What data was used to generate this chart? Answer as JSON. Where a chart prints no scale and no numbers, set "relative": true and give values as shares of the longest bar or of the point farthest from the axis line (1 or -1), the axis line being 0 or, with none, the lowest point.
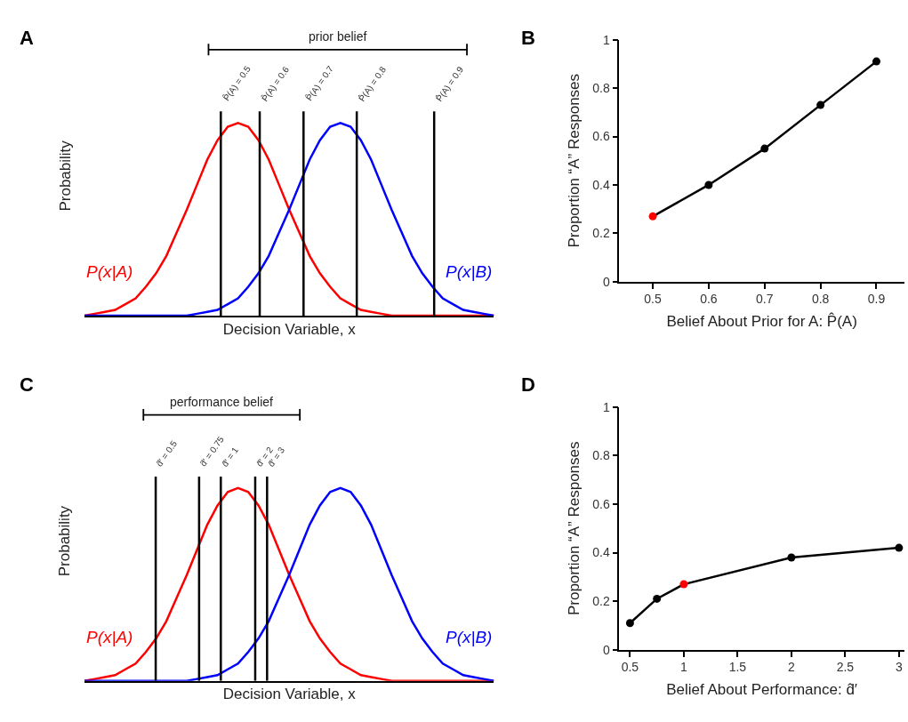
{
  "chart_data": [
    {
      "type": "line",
      "title": "A",
      "xlabel": "Decision Variable, x",
      "ylabel": "Probability",
      "relative": true,
      "tick_labels": false,
      "legend": false,
      "marker": "none",
      "categories": [
        null,
        null,
        null,
        null,
        null,
        null,
        null,
        null,
        null,
        null,
        null,
        null,
        null,
        null,
        null,
        null,
        null,
        null,
        null,
        null,
        null,
        null,
        null,
        null,
        null,
        null,
        null,
        null,
        null,
        null,
        null,
        null,
        null,
        null,
        null,
        null,
        null,
        null,
        null,
        null,
        null
      ],
      "series": [
        {
          "name": "P(x|A)",
          "color": "#ff0000",
          "values": [
            0,
            0.01,
            0.02,
            0.03,
            0.06,
            0.09,
            0.15,
            0.22,
            0.31,
            0.43,
            0.55,
            0.68,
            0.81,
            0.91,
            0.98,
            1,
            0.98,
            0.91,
            0.81,
            0.68,
            0.55,
            0.43,
            0.31,
            0.22,
            0.15,
            0.09,
            0.06,
            0.03,
            0.02,
            0.01,
            0,
            0,
            0,
            0,
            0,
            0,
            0,
            0,
            0,
            0,
            0
          ]
        },
        {
          "name": "P(x|B)",
          "color": "#0000ff",
          "values": [
            0,
            0,
            0,
            0,
            0,
            0,
            0,
            0,
            0,
            0,
            0,
            0.01,
            0.02,
            0.03,
            0.06,
            0.09,
            0.15,
            0.22,
            0.31,
            0.43,
            0.55,
            0.68,
            0.81,
            0.91,
            0.98,
            1,
            0.98,
            0.91,
            0.81,
            0.68,
            0.55,
            0.43,
            0.31,
            0.22,
            0.15,
            0.09,
            0.06,
            0.03,
            0.02,
            0.01,
            0
          ]
        }
      ],
      "annotations": [
        "prior belief",
        "P̂(A) = 0.5",
        "P̂(A) = 0.6",
        "P̂(A) = 0.7",
        "P̂(A) = 0.8",
        "P̂(A) = 0.9"
      ]
    },
    {
      "type": "line",
      "title": "B",
      "xlabel": "Belief About Prior for A: P̂(A)",
      "ylabel": "Proportion “A” Responses",
      "legend": false,
      "marker": "circle",
      "xlim": [
        0.44,
        0.95
      ],
      "xticks": [
        0.5,
        0.6,
        0.7,
        0.8,
        0.9
      ],
      "ylim": [
        0,
        1
      ],
      "yticks": [
        0,
        0.2,
        0.4,
        0.6,
        0.8,
        1
      ],
      "x": [
        0.5,
        0.6,
        0.7,
        0.8,
        0.9
      ],
      "series": [
        {
          "color": "#000000",
          "colors": [
            "#ff0000",
            "#000000",
            "#000000",
            "#000000",
            "#000000"
          ],
          "values": [
            0.27,
            0.4,
            0.55,
            0.73,
            0.91
          ]
        }
      ]
    },
    {
      "type": "line",
      "title": "C",
      "xlabel": "Decision Variable, x",
      "ylabel": "Probability",
      "relative": true,
      "tick_labels": false,
      "legend": false,
      "marker": "none",
      "categories": [
        null,
        null,
        null,
        null,
        null,
        null,
        null,
        null,
        null,
        null,
        null,
        null,
        null,
        null,
        null,
        null,
        null,
        null,
        null,
        null,
        null,
        null,
        null,
        null,
        null,
        null,
        null,
        null,
        null,
        null,
        null,
        null,
        null,
        null,
        null,
        null,
        null,
        null,
        null,
        null,
        null
      ],
      "series": [
        {
          "name": "P(x|A)",
          "color": "#ff0000",
          "values": [
            0,
            0.01,
            0.02,
            0.03,
            0.06,
            0.09,
            0.15,
            0.22,
            0.31,
            0.43,
            0.55,
            0.68,
            0.81,
            0.91,
            0.98,
            1,
            0.98,
            0.91,
            0.81,
            0.68,
            0.55,
            0.43,
            0.31,
            0.22,
            0.15,
            0.09,
            0.06,
            0.03,
            0.02,
            0.01,
            0,
            0,
            0,
            0,
            0,
            0,
            0,
            0,
            0,
            0,
            0
          ]
        },
        {
          "name": "P(x|B)",
          "color": "#0000ff",
          "values": [
            0,
            0,
            0,
            0,
            0,
            0,
            0,
            0,
            0,
            0,
            0,
            0.01,
            0.02,
            0.03,
            0.06,
            0.09,
            0.15,
            0.22,
            0.31,
            0.43,
            0.55,
            0.68,
            0.81,
            0.91,
            0.98,
            1,
            0.98,
            0.91,
            0.81,
            0.68,
            0.55,
            0.43,
            0.31,
            0.22,
            0.15,
            0.09,
            0.06,
            0.03,
            0.02,
            0.01,
            0
          ]
        }
      ],
      "annotations": [
        "performance belief",
        "d̂′ = 0.5",
        "d̂′ = 0.75",
        "d̂′ = 1",
        "d̂′ = 2",
        "d̂′ = 3"
      ]
    },
    {
      "type": "line",
      "title": "D",
      "xlabel": "Belief About Performance: d̂′",
      "ylabel": "Proportion “A” Responses",
      "legend": false,
      "marker": "circle",
      "xlim": [
        0.4,
        3.05
      ],
      "xticks": [
        0.5,
        1,
        1.5,
        2,
        2.5,
        3
      ],
      "ylim": [
        0,
        1
      ],
      "yticks": [
        0,
        0.2,
        0.4,
        0.6,
        0.8,
        1
      ],
      "x": [
        0.5,
        0.75,
        1,
        2,
        3
      ],
      "series": [
        {
          "color": "#000000",
          "colors": [
            "#000000",
            "#000000",
            "#ff0000",
            "#000000",
            "#000000"
          ],
          "values": [
            0.11,
            0.21,
            0.27,
            0.38,
            0.42
          ]
        }
      ]
    }
  ]
}
